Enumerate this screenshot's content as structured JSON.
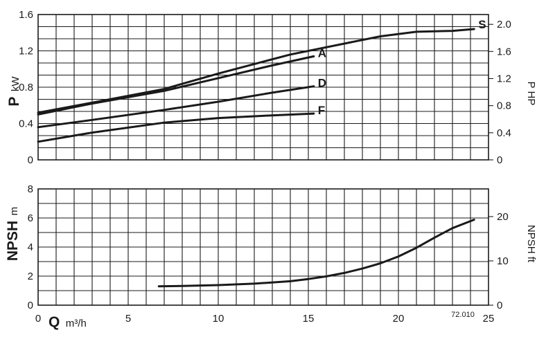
{
  "chart_data": [
    {
      "type": "line",
      "panel": "power",
      "ylabel_symbol": "P",
      "ylabel_unit": "kW",
      "ylabel_right": "P HP",
      "xlim": [
        0,
        25
      ],
      "ylim": [
        0,
        1.6
      ],
      "ylim_right": [
        0,
        2.145
      ],
      "x_ticks": [
        0,
        5,
        10,
        15,
        20,
        25
      ],
      "y_ticks": [
        "0",
        "0.4",
        "0.8",
        "1.2",
        "1.6"
      ],
      "y_ticks_right": [
        "0",
        "0.4",
        "0.8",
        "1.2",
        "1.6",
        "2.0"
      ],
      "y_ticks_right_values": [
        0,
        0.4,
        0.8,
        1.2,
        1.6,
        2.0
      ],
      "grid": true,
      "series": [
        {
          "name": "S",
          "x": [
            0,
            3,
            7,
            10,
            14,
            17,
            19,
            21,
            23,
            24.2
          ],
          "y": [
            0.52,
            0.63,
            0.78,
            0.95,
            1.16,
            1.28,
            1.36,
            1.41,
            1.42,
            1.44
          ]
        },
        {
          "name": "A",
          "x": [
            0,
            3,
            7,
            10,
            13,
            15.3
          ],
          "y": [
            0.5,
            0.62,
            0.76,
            0.9,
            1.04,
            1.14
          ]
        },
        {
          "name": "D",
          "x": [
            0,
            3,
            7,
            10,
            13,
            15.3
          ],
          "y": [
            0.36,
            0.44,
            0.55,
            0.64,
            0.74,
            0.81
          ]
        },
        {
          "name": "F",
          "x": [
            0,
            3,
            7,
            10,
            13,
            15.3
          ],
          "y": [
            0.2,
            0.3,
            0.41,
            0.46,
            0.49,
            0.51
          ]
        }
      ]
    },
    {
      "type": "line",
      "panel": "npsh",
      "ylabel_symbol": "NPSH",
      "ylabel_unit": "m",
      "ylabel_right": "NPSH ft",
      "xlabel_symbol": "Q",
      "xlabel_unit": "m³/h",
      "xlim": [
        0,
        25
      ],
      "ylim": [
        0,
        8
      ],
      "ylim_right": [
        0,
        26.25
      ],
      "x_ticks": [
        "0",
        "5",
        "10",
        "15",
        "20",
        "25"
      ],
      "y_ticks": [
        "0",
        "2",
        "4",
        "6",
        "8"
      ],
      "y_ticks_right": [
        "0",
        "10",
        "20"
      ],
      "y_ticks_right_values": [
        0,
        10,
        20
      ],
      "grid": true,
      "series": [
        {
          "name": "NPSH",
          "x": [
            6.7,
            8,
            10,
            12,
            14,
            15,
            16,
            17,
            18,
            19,
            20,
            21,
            22,
            23,
            24.2
          ],
          "y": [
            1.3,
            1.32,
            1.38,
            1.48,
            1.65,
            1.8,
            1.98,
            2.22,
            2.52,
            2.88,
            3.35,
            3.95,
            4.65,
            5.3,
            5.88
          ]
        }
      ]
    }
  ],
  "figure_code": "72.010"
}
